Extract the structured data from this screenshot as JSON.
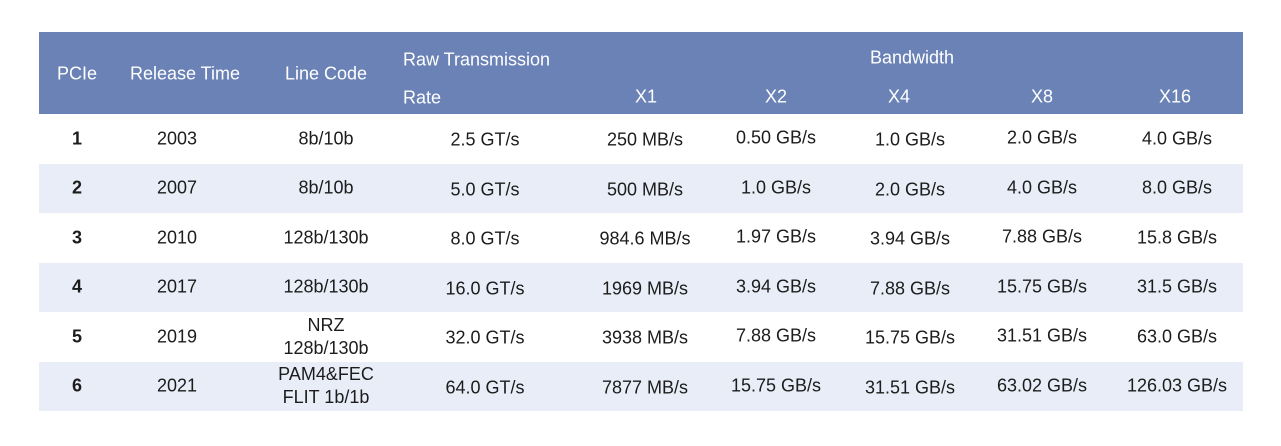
{
  "header": {
    "pcie": "PCIe",
    "release_time": "Release Time",
    "line_code": "Line Code",
    "raw_rate_line1": "Raw Transmission",
    "raw_rate_line2": "Rate",
    "bandwidth": "Bandwidth",
    "x1": "X1",
    "x2": "X2",
    "x4": "X4",
    "x8": "X8",
    "x16": "X16"
  },
  "rows": [
    {
      "pcie": "1",
      "year": "2003",
      "code": [
        "8b/10b"
      ],
      "rate": "2.5 GT/s",
      "x1": "250 MB/s",
      "x2": "0.50 GB/s",
      "x4": "1.0 GB/s",
      "x8": "2.0 GB/s",
      "x16": "4.0 GB/s"
    },
    {
      "pcie": "2",
      "year": "2007",
      "code": [
        "8b/10b"
      ],
      "rate": "5.0 GT/s",
      "x1": "500 MB/s",
      "x2": "1.0 GB/s",
      "x4": "2.0 GB/s",
      "x8": "4.0 GB/s",
      "x16": "8.0 GB/s"
    },
    {
      "pcie": "3",
      "year": "2010",
      "code": [
        "128b/130b"
      ],
      "rate": "8.0 GT/s",
      "x1": "984.6 MB/s",
      "x2": "1.97 GB/s",
      "x4": "3.94 GB/s",
      "x8": "7.88 GB/s",
      "x16": "15.8 GB/s"
    },
    {
      "pcie": "4",
      "year": "2017",
      "code": [
        "128b/130b"
      ],
      "rate": "16.0 GT/s",
      "x1": "1969 MB/s",
      "x2": "3.94 GB/s",
      "x4": "7.88 GB/s",
      "x8": "15.75 GB/s",
      "x16": "31.5 GB/s"
    },
    {
      "pcie": "5",
      "year": "2019",
      "code": [
        "NRZ",
        "128b/130b"
      ],
      "rate": "32.0 GT/s",
      "x1": "3938 MB/s",
      "x2": "7.88 GB/s",
      "x4": "15.75 GB/s",
      "x8": "31.51 GB/s",
      "x16": "63.0 GB/s"
    },
    {
      "pcie": "6",
      "year": "2021",
      "code": [
        "PAM4&FEC",
        "FLIT 1b/1b"
      ],
      "rate": "64.0 GT/s",
      "x1": "7877 MB/s",
      "x2": "15.75 GB/s",
      "x4": "31.51 GB/s",
      "x8": "63.02 GB/s",
      "x16": "126.03 GB/s"
    }
  ]
}
